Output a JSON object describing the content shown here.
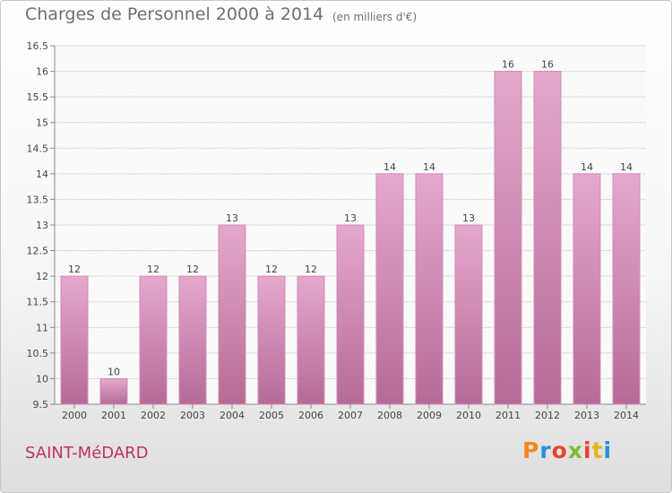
{
  "header": {
    "title": "Charges de Personnel 2000 à 2014",
    "subtitle": "(en milliers d'€)"
  },
  "footer": {
    "city": "SAINT-MéDARD",
    "brand": "Proxiti",
    "brand_colors": [
      "#f08a1c",
      "#2a8fd6",
      "#e8442b",
      "#7dbb2f",
      "#e8442b",
      "#e8b21c",
      "#2a8fd6"
    ]
  },
  "colors": {
    "bar_top": "#e6a8ce",
    "bar_bottom": "#b56b96",
    "bar_edge": "#cf8ab6",
    "city": "#c0325a"
  },
  "chart_data": {
    "type": "bar",
    "title": "Charges de Personnel 2000 à 2014",
    "subtitle": "(en milliers d'€)",
    "categories": [
      "2000",
      "2001",
      "2002",
      "2003",
      "2004",
      "2005",
      "2006",
      "2007",
      "2008",
      "2009",
      "2010",
      "2011",
      "2012",
      "2013",
      "2014"
    ],
    "values": [
      12,
      10,
      12,
      12,
      13,
      12,
      12,
      13,
      14,
      14,
      13,
      16,
      16,
      14,
      14
    ],
    "ylim": [
      9.5,
      16.5
    ],
    "yticks": [
      9.5,
      10,
      10.5,
      11,
      11.5,
      12,
      12.5,
      13,
      13.5,
      14,
      14.5,
      15,
      15.5,
      16,
      16.5
    ],
    "ytick_labels": [
      "9.5",
      "10",
      "10.5",
      "11",
      "11.5",
      "12",
      "12.5",
      "13",
      "13.5",
      "14",
      "14.5",
      "15",
      "15.5",
      "16",
      "16.5"
    ],
    "grid": "horizontal",
    "legend": "none"
  }
}
